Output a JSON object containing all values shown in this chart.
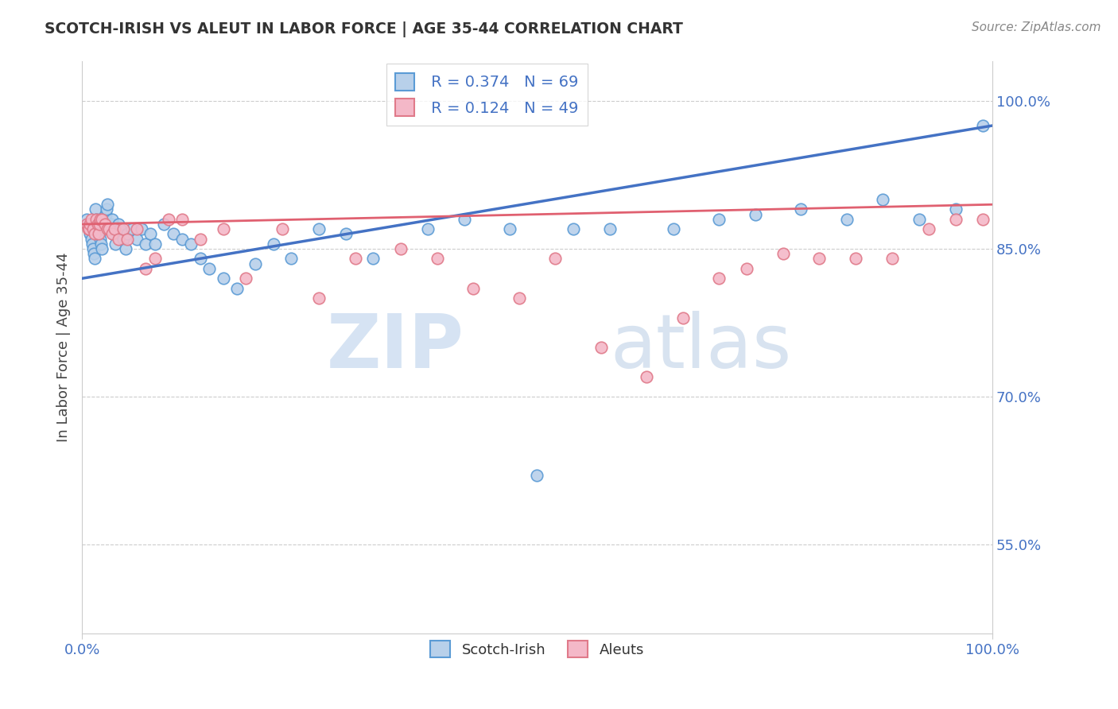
{
  "title": "SCOTCH-IRISH VS ALEUT IN LABOR FORCE | AGE 35-44 CORRELATION CHART",
  "source": "Source: ZipAtlas.com",
  "ylabel": "In Labor Force | Age 35-44",
  "xlim": [
    0.0,
    1.0
  ],
  "ylim": [
    0.46,
    1.04
  ],
  "x_tick_labels": [
    "0.0%",
    "100.0%"
  ],
  "y_tick_labels": [
    "55.0%",
    "70.0%",
    "85.0%",
    "100.0%"
  ],
  "y_tick_values": [
    0.55,
    0.7,
    0.85,
    1.0
  ],
  "scotch_irish_R": 0.374,
  "scotch_irish_N": 69,
  "aleut_R": 0.124,
  "aleut_N": 49,
  "scotch_irish_color": "#b8d0ea",
  "scotch_irish_edge": "#5b9bd5",
  "aleut_color": "#f4b8c8",
  "aleut_edge": "#e07a8a",
  "trend_scotch_color": "#4472c4",
  "trend_aleut_color": "#e06070",
  "watermark_zip": "ZIP",
  "watermark_atlas": "atlas",
  "scotch_irish_x": [
    0.005,
    0.007,
    0.008,
    0.009,
    0.01,
    0.011,
    0.012,
    0.013,
    0.014,
    0.015,
    0.016,
    0.017,
    0.018,
    0.019,
    0.02,
    0.021,
    0.022,
    0.023,
    0.024,
    0.025,
    0.026,
    0.027,
    0.028,
    0.03,
    0.032,
    0.033,
    0.034,
    0.035,
    0.037,
    0.04,
    0.042,
    0.045,
    0.048,
    0.05,
    0.055,
    0.06,
    0.065,
    0.07,
    0.075,
    0.08,
    0.09,
    0.1,
    0.11,
    0.12,
    0.13,
    0.14,
    0.155,
    0.17,
    0.19,
    0.21,
    0.23,
    0.26,
    0.29,
    0.32,
    0.38,
    0.42,
    0.47,
    0.5,
    0.54,
    0.58,
    0.65,
    0.7,
    0.74,
    0.79,
    0.84,
    0.88,
    0.92,
    0.96,
    0.99
  ],
  "scotch_irish_y": [
    0.88,
    0.875,
    0.87,
    0.865,
    0.86,
    0.855,
    0.85,
    0.845,
    0.84,
    0.89,
    0.88,
    0.875,
    0.87,
    0.865,
    0.86,
    0.855,
    0.85,
    0.87,
    0.875,
    0.88,
    0.885,
    0.89,
    0.895,
    0.87,
    0.875,
    0.88,
    0.865,
    0.87,
    0.855,
    0.875,
    0.87,
    0.86,
    0.85,
    0.865,
    0.87,
    0.86,
    0.87,
    0.855,
    0.865,
    0.855,
    0.875,
    0.865,
    0.86,
    0.855,
    0.84,
    0.83,
    0.82,
    0.81,
    0.835,
    0.855,
    0.84,
    0.87,
    0.865,
    0.84,
    0.87,
    0.88,
    0.87,
    0.62,
    0.87,
    0.87,
    0.87,
    0.88,
    0.885,
    0.89,
    0.88,
    0.9,
    0.88,
    0.89,
    0.975
  ],
  "aleut_x": [
    0.005,
    0.007,
    0.008,
    0.009,
    0.01,
    0.012,
    0.014,
    0.016,
    0.017,
    0.018,
    0.019,
    0.02,
    0.022,
    0.025,
    0.028,
    0.03,
    0.033,
    0.036,
    0.04,
    0.045,
    0.05,
    0.06,
    0.07,
    0.08,
    0.095,
    0.11,
    0.13,
    0.155,
    0.18,
    0.22,
    0.26,
    0.3,
    0.35,
    0.39,
    0.43,
    0.48,
    0.52,
    0.57,
    0.62,
    0.66,
    0.7,
    0.73,
    0.77,
    0.81,
    0.85,
    0.89,
    0.93,
    0.96,
    0.99
  ],
  "aleut_y": [
    0.875,
    0.87,
    0.87,
    0.875,
    0.88,
    0.87,
    0.865,
    0.88,
    0.875,
    0.865,
    0.875,
    0.88,
    0.88,
    0.875,
    0.87,
    0.87,
    0.865,
    0.87,
    0.86,
    0.87,
    0.86,
    0.87,
    0.83,
    0.84,
    0.88,
    0.88,
    0.86,
    0.87,
    0.82,
    0.87,
    0.8,
    0.84,
    0.85,
    0.84,
    0.81,
    0.8,
    0.84,
    0.75,
    0.72,
    0.78,
    0.82,
    0.83,
    0.845,
    0.84,
    0.84,
    0.84,
    0.87,
    0.88,
    0.88
  ]
}
